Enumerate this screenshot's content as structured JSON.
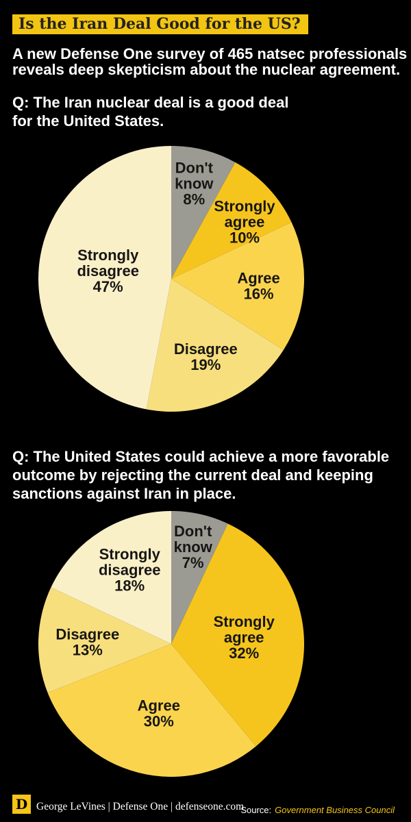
{
  "header": {
    "title": "Is the Iran Deal Good for the US?",
    "subtitle_lines": [
      "A new Defense One survey of 465 natsec professionals",
      "reveals deep skepticism about the nuclear agreement."
    ]
  },
  "colors": {
    "background": "#000000",
    "banner_gold": "#F2C512",
    "strongly_agree": "#F6C51D",
    "agree": "#FBD44E",
    "disagree": "#F8DF7D",
    "strongly_disagree": "#FAF0C8",
    "dont_know": "#9B9B93",
    "text_light": "#FFFFFF",
    "text_dark": "#171614"
  },
  "chart_data": [
    {
      "type": "pie",
      "title": "Q: The Iran nuclear deal is a good deal for the United States.",
      "title_lines": [
        "Q: The Iran nuclear deal is a good deal",
        "for the United States."
      ],
      "categories": [
        "Don't know",
        "Strongly agree",
        "Agree",
        "Disagree",
        "Strongly disagree"
      ],
      "values": [
        8,
        10,
        16,
        19,
        47
      ],
      "start_angle_deg": 0,
      "direction": "clockwise",
      "legend": "none",
      "slices": [
        {
          "name": "Don't know",
          "value": 8,
          "color": "#9B9B93",
          "lines": [
            "Don't",
            "know",
            "8%"
          ],
          "label_angle": 13.4,
          "label_r": 0.74
        },
        {
          "name": "Strongly agree",
          "value": 10,
          "color": "#F6C51D",
          "lines": [
            "Strongly",
            "agree",
            "10%"
          ],
          "label_angle": 52.0,
          "label_r": 0.7
        },
        {
          "name": "Agree",
          "value": 16,
          "color": "#FBD44E",
          "lines": [
            "Agree",
            "16%"
          ],
          "label_angle": 94.5,
          "label_r": 0.66
        },
        {
          "name": "Disagree",
          "value": 19,
          "color": "#F8DF7D",
          "lines": [
            "Disagree",
            "19%"
          ],
          "label_angle": 156.1,
          "label_r": 0.64
        },
        {
          "name": "Strongly disagree",
          "value": 47,
          "color": "#FAF0C8",
          "lines": [
            "Strongly",
            "disagree",
            "47%"
          ],
          "label_angle": 277.4,
          "label_r": 0.48
        }
      ]
    },
    {
      "type": "pie",
      "title": "Q: The United States could achieve a more favorable outcome by rejecting the current deal and keeping sanctions against Iran in place.",
      "title_lines": [
        "Q: The United States could achieve a more favorable",
        "outcome by rejecting the current deal and keeping",
        "sanctions against Iran in place."
      ],
      "categories": [
        "Don't know",
        "Strongly agree",
        "Agree",
        "Disagree",
        "Strongly disagree"
      ],
      "values": [
        7,
        32,
        30,
        13,
        18
      ],
      "start_angle_deg": 0,
      "direction": "clockwise",
      "legend": "none",
      "slices": [
        {
          "name": "Don't know",
          "value": 7,
          "color": "#9B9B93",
          "lines": [
            "Don't",
            "know",
            "7%"
          ],
          "label_angle": 12.6,
          "label_r": 0.75
        },
        {
          "name": "Strongly agree",
          "value": 32,
          "color": "#F6C51D",
          "lines": [
            "Strongly",
            "agree",
            "32%"
          ],
          "label_angle": 84.6,
          "label_r": 0.55
        },
        {
          "name": "Agree",
          "value": 30,
          "color": "#FBD44E",
          "lines": [
            "Agree",
            "30%"
          ],
          "label_angle": 190.2,
          "label_r": 0.53
        },
        {
          "name": "Disagree",
          "value": 13,
          "color": "#F8DF7D",
          "lines": [
            "Disagree",
            "13%"
          ],
          "label_angle": 271.4,
          "label_r": 0.63
        },
        {
          "name": "Strongly disagree",
          "value": 18,
          "color": "#FAF0C8",
          "lines": [
            "Strongly",
            "disagree",
            "18%"
          ],
          "label_angle": 330.7,
          "label_r": 0.64
        }
      ]
    }
  ],
  "footer": {
    "logo_letter": "D",
    "byline": "George LeVines | Defense One | defenseone.com",
    "source_label": "Source:",
    "source_name": "Government Business Council"
  }
}
